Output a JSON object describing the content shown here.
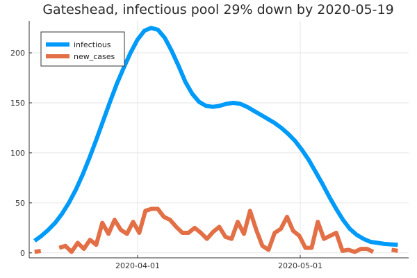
{
  "chart_data": {
    "type": "line",
    "title": "Gateshead, infectious pool 29% down by 2020-05-19",
    "xlabel": "",
    "ylabel": "",
    "x_start": "2020-03-13",
    "x_end": "2020-05-19",
    "xlim": [
      "2020-03-12",
      "2020-05-21"
    ],
    "ylim": [
      -5,
      232
    ],
    "x_ticks": [
      {
        "date": "2020-04-01",
        "label": "2020-04-01"
      },
      {
        "date": "2020-05-01",
        "label": "2020-05-01"
      }
    ],
    "y_ticks": [
      0,
      50,
      100,
      150,
      200
    ],
    "grid": true,
    "legend_position": "top-left",
    "series": [
      {
        "name": "infectious",
        "color": "#009af9",
        "values": [
          12,
          17,
          23,
          30,
          39,
          50,
          63,
          78,
          95,
          113,
          132,
          151,
          169,
          185,
          200,
          213,
          222,
          225,
          223,
          215,
          202,
          187,
          171,
          159,
          151,
          147,
          146,
          147,
          149,
          150,
          149,
          146,
          142,
          138,
          134,
          130,
          125,
          119,
          112,
          103,
          93,
          81,
          69,
          56,
          44,
          33,
          24,
          18,
          14,
          11,
          10,
          9,
          8.5,
          8
        ]
      },
      {
        "name": "new_cases",
        "color": "#e26f46",
        "values": [
          1,
          2,
          null,
          null,
          5,
          7,
          1,
          10,
          4,
          13,
          8,
          30,
          19,
          33,
          23,
          19,
          31,
          20,
          42,
          44,
          44,
          36,
          33,
          26,
          20,
          20,
          25,
          20,
          14,
          21,
          26,
          16,
          14,
          31,
          19,
          42,
          23,
          7,
          3,
          20,
          24,
          36,
          22,
          17,
          5,
          5,
          31,
          14,
          17,
          20,
          2,
          3,
          1,
          4,
          4,
          1,
          null,
          null,
          3,
          2
        ]
      }
    ]
  }
}
